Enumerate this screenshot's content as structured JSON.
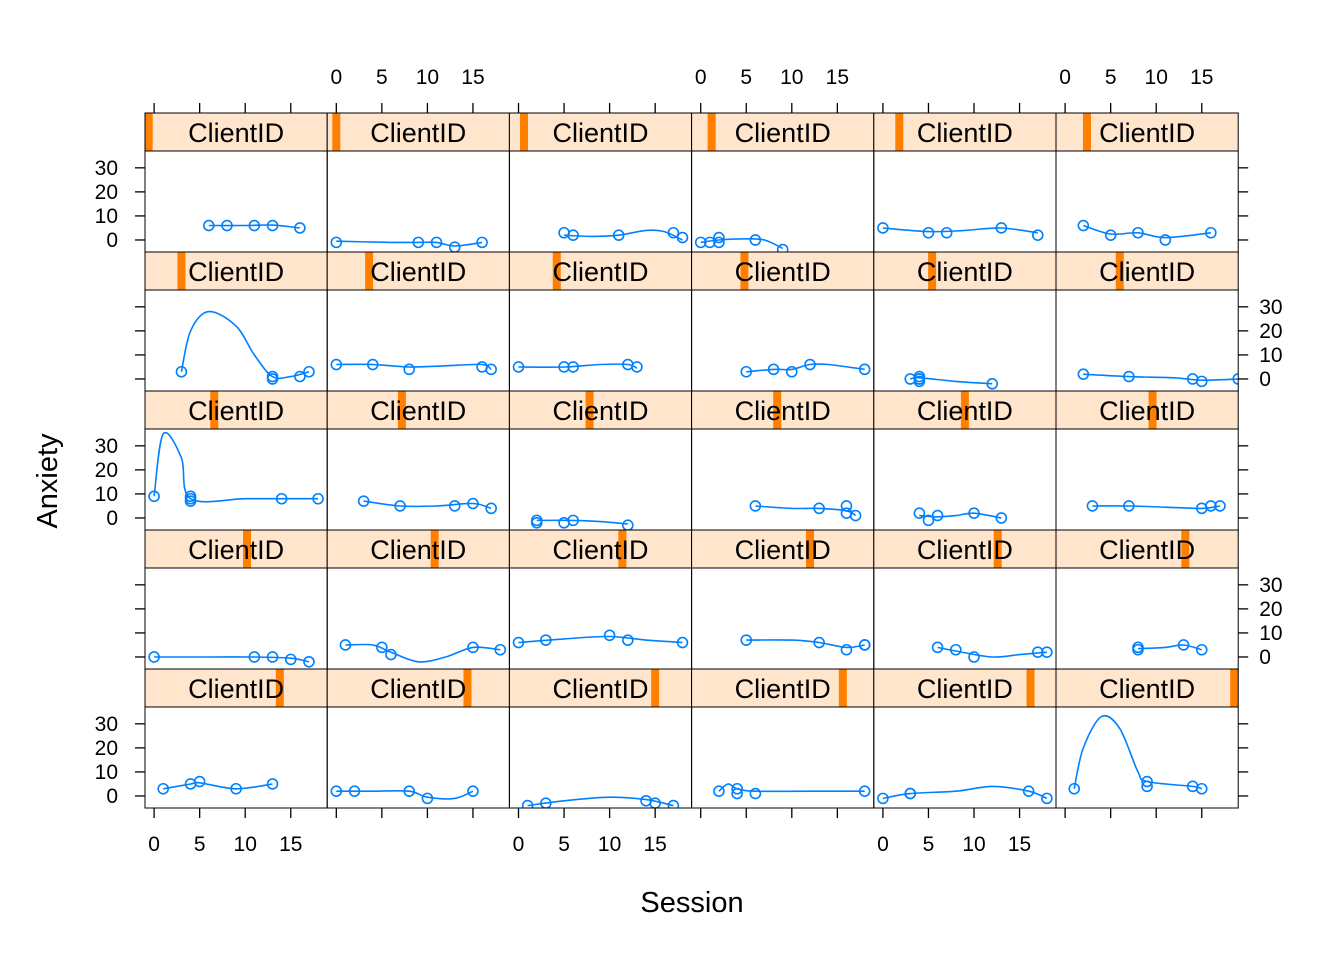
{
  "chart_data": {
    "type": "line",
    "kind": "lattice scatter with loess smoother, one panel per client",
    "xlabel": "Session",
    "ylabel": "Anxiety",
    "strip_label": "ClientID",
    "xlim": [
      -1,
      19
    ],
    "ylim": [
      -5,
      37
    ],
    "x_ticks": [
      0,
      5,
      10,
      15
    ],
    "y_ticks": [
      0,
      10,
      20,
      30
    ],
    "layout": {
      "columns": 6,
      "rows": 5
    },
    "colors": {
      "points": "#0080ff",
      "strip_bg": "#ffe5cc",
      "strip_marker": "#ff7f00",
      "frame": "#000000"
    },
    "panels": [
      {
        "row": 0,
        "col": 0,
        "strip_level": 0.02,
        "x": [
          6,
          8,
          11,
          13,
          16
        ],
        "y": [
          6,
          6,
          6,
          6,
          5
        ],
        "curve": [
          [
            6,
            6
          ],
          [
            10,
            6
          ],
          [
            13,
            6.2
          ],
          [
            16,
            5
          ]
        ]
      },
      {
        "row": 0,
        "col": 1,
        "strip_level": 0.05,
        "x": [
          0,
          9,
          11,
          13,
          16
        ],
        "y": [
          -1,
          -1,
          -1,
          -3,
          -1
        ],
        "curve": [
          [
            0,
            -0.5
          ],
          [
            6,
            -1
          ],
          [
            9,
            -1
          ],
          [
            11,
            -1
          ],
          [
            13,
            -2.5
          ],
          [
            16,
            -1
          ]
        ]
      },
      {
        "row": 0,
        "col": 2,
        "strip_level": 0.08,
        "x": [
          5,
          6,
          11,
          17,
          18
        ],
        "y": [
          3,
          2,
          2,
          3,
          1
        ],
        "curve": [
          [
            5,
            2
          ],
          [
            8,
            1.5
          ],
          [
            11,
            2
          ],
          [
            14,
            4
          ],
          [
            16,
            3.5
          ],
          [
            18,
            0
          ]
        ]
      },
      {
        "row": 0,
        "col": 3,
        "strip_level": 0.11,
        "x": [
          0,
          1,
          2,
          2,
          6,
          9
        ],
        "y": [
          -1,
          -1,
          1,
          -1,
          0,
          -4
        ],
        "curve": [
          [
            0,
            -1
          ],
          [
            2,
            0
          ],
          [
            5,
            0.5
          ],
          [
            7,
            0
          ],
          [
            9,
            -3.5
          ]
        ]
      },
      {
        "row": 0,
        "col": 4,
        "strip_level": 0.14,
        "x": [
          0,
          5,
          7,
          13,
          17
        ],
        "y": [
          5,
          3,
          3,
          5,
          2
        ],
        "curve": [
          [
            0,
            5
          ],
          [
            5,
            3.5
          ],
          [
            9,
            4
          ],
          [
            13,
            5
          ],
          [
            17,
            3
          ]
        ]
      },
      {
        "row": 0,
        "col": 5,
        "strip_level": 0.17,
        "x": [
          2,
          5,
          8,
          11,
          16
        ],
        "y": [
          6,
          2,
          3,
          0,
          3
        ],
        "curve": [
          [
            2,
            6
          ],
          [
            5,
            2.5
          ],
          [
            8,
            3
          ],
          [
            11,
            1
          ],
          [
            16,
            3
          ]
        ]
      },
      {
        "row": 1,
        "col": 0,
        "strip_level": 0.2,
        "x": [
          3,
          13,
          13,
          16,
          17
        ],
        "y": [
          3,
          0,
          1,
          1,
          3
        ],
        "curve": [
          [
            3,
            3
          ],
          [
            4,
            20
          ],
          [
            6,
            28
          ],
          [
            9,
            22
          ],
          [
            11,
            10
          ],
          [
            13,
            1
          ],
          [
            15,
            1
          ],
          [
            17,
            3
          ]
        ]
      },
      {
        "row": 1,
        "col": 1,
        "strip_level": 0.23,
        "x": [
          0,
          4,
          8,
          16,
          17
        ],
        "y": [
          6,
          6,
          4,
          5,
          4
        ],
        "curve": [
          [
            0,
            6
          ],
          [
            4,
            6
          ],
          [
            8,
            5
          ],
          [
            12,
            5.5
          ],
          [
            16,
            6
          ],
          [
            17,
            4
          ]
        ]
      },
      {
        "row": 1,
        "col": 2,
        "strip_level": 0.26,
        "x": [
          0,
          5,
          6,
          12,
          13
        ],
        "y": [
          5,
          5,
          5,
          6,
          5
        ],
        "curve": [
          [
            0,
            5
          ],
          [
            5,
            5
          ],
          [
            9,
            6
          ],
          [
            12,
            6
          ],
          [
            13,
            4.5
          ]
        ]
      },
      {
        "row": 1,
        "col": 3,
        "strip_level": 0.29,
        "x": [
          5,
          8,
          10,
          12,
          18
        ],
        "y": [
          3,
          4,
          3,
          6,
          4
        ],
        "curve": [
          [
            5,
            3
          ],
          [
            8,
            4
          ],
          [
            10,
            4
          ],
          [
            12,
            6
          ],
          [
            14,
            6
          ],
          [
            18,
            4
          ]
        ]
      },
      {
        "row": 1,
        "col": 4,
        "strip_level": 0.32,
        "x": [
          3,
          4,
          4,
          4,
          4,
          12
        ],
        "y": [
          0,
          1,
          0,
          0,
          -1,
          -2
        ],
        "curve": [
          [
            3,
            0
          ],
          [
            4,
            0.5
          ],
          [
            8,
            -1
          ],
          [
            12,
            -2
          ]
        ]
      },
      {
        "row": 1,
        "col": 5,
        "strip_level": 0.35,
        "x": [
          2,
          7,
          14,
          15,
          19
        ],
        "y": [
          2,
          1,
          0,
          -1,
          0
        ],
        "curve": [
          [
            2,
            2
          ],
          [
            7,
            1
          ],
          [
            12,
            0.5
          ],
          [
            15,
            -0.5
          ],
          [
            19,
            0
          ]
        ]
      },
      {
        "row": 2,
        "col": 0,
        "strip_level": 0.38,
        "x": [
          0,
          4,
          4,
          4,
          14,
          18
        ],
        "y": [
          9,
          8,
          9,
          7,
          8,
          8
        ],
        "curve": [
          [
            0,
            9
          ],
          [
            1,
            35
          ],
          [
            3,
            25
          ],
          [
            4,
            8
          ],
          [
            10,
            8
          ],
          [
            14,
            8
          ],
          [
            18,
            8
          ]
        ]
      },
      {
        "row": 2,
        "col": 1,
        "strip_level": 0.41,
        "x": [
          3,
          7,
          13,
          15,
          17
        ],
        "y": [
          7,
          5,
          5,
          6,
          4
        ],
        "curve": [
          [
            3,
            7
          ],
          [
            7,
            5
          ],
          [
            11,
            5
          ],
          [
            15,
            6
          ],
          [
            17,
            4
          ]
        ]
      },
      {
        "row": 2,
        "col": 2,
        "strip_level": 0.44,
        "x": [
          2,
          2,
          5,
          6,
          12
        ],
        "y": [
          -1,
          -2,
          -2,
          -1,
          -3
        ],
        "curve": [
          [
            2,
            -1
          ],
          [
            6,
            -1
          ],
          [
            9,
            -1.5
          ],
          [
            12,
            -2.5
          ]
        ]
      },
      {
        "row": 2,
        "col": 3,
        "strip_level": 0.47,
        "x": [
          6,
          13,
          16,
          16,
          17
        ],
        "y": [
          5,
          4,
          5,
          2,
          1
        ],
        "curve": [
          [
            6,
            5
          ],
          [
            10,
            4
          ],
          [
            13,
            4
          ],
          [
            16,
            3
          ],
          [
            17,
            1
          ]
        ]
      },
      {
        "row": 2,
        "col": 4,
        "strip_level": 0.5,
        "x": [
          4,
          5,
          6,
          10,
          13
        ],
        "y": [
          2,
          -1,
          1,
          2,
          0
        ],
        "curve": [
          [
            4,
            1
          ],
          [
            6,
            0.5
          ],
          [
            8,
            1
          ],
          [
            10,
            2
          ],
          [
            13,
            0
          ]
        ]
      },
      {
        "row": 2,
        "col": 5,
        "strip_level": 0.53,
        "x": [
          3,
          7,
          15,
          16,
          17
        ],
        "y": [
          5,
          5,
          4,
          5,
          5
        ],
        "curve": [
          [
            3,
            5
          ],
          [
            7,
            5
          ],
          [
            11,
            4.5
          ],
          [
            15,
            4
          ],
          [
            17,
            5
          ]
        ]
      },
      {
        "row": 3,
        "col": 0,
        "strip_level": 0.56,
        "x": [
          0,
          11,
          13,
          15,
          17
        ],
        "y": [
          0,
          0,
          0,
          -1,
          -2
        ],
        "curve": [
          [
            0,
            0
          ],
          [
            6,
            0
          ],
          [
            11,
            0
          ],
          [
            15,
            -0.5
          ],
          [
            17,
            -2
          ]
        ]
      },
      {
        "row": 3,
        "col": 1,
        "strip_level": 0.59,
        "x": [
          1,
          5,
          6,
          15,
          18
        ],
        "y": [
          5,
          4,
          1,
          4,
          3
        ],
        "curve": [
          [
            1,
            5
          ],
          [
            4,
            5
          ],
          [
            6,
            2
          ],
          [
            9,
            -2
          ],
          [
            12,
            0
          ],
          [
            15,
            4
          ],
          [
            18,
            3
          ]
        ]
      },
      {
        "row": 3,
        "col": 2,
        "strip_level": 0.62,
        "x": [
          0,
          3,
          10,
          12,
          18
        ],
        "y": [
          6,
          7,
          9,
          7,
          6
        ],
        "curve": [
          [
            0,
            6
          ],
          [
            5,
            7.5
          ],
          [
            10,
            8.5
          ],
          [
            14,
            7
          ],
          [
            18,
            6
          ]
        ]
      },
      {
        "row": 3,
        "col": 3,
        "strip_level": 0.65,
        "x": [
          5,
          13,
          16,
          18,
          18
        ],
        "y": [
          7,
          6,
          3,
          5,
          5
        ],
        "curve": [
          [
            5,
            7
          ],
          [
            10,
            7
          ],
          [
            13,
            6
          ],
          [
            16,
            4
          ],
          [
            18,
            5
          ]
        ]
      },
      {
        "row": 3,
        "col": 4,
        "strip_level": 0.68,
        "x": [
          6,
          8,
          10,
          17,
          18
        ],
        "y": [
          4,
          3,
          0,
          2,
          2
        ],
        "curve": [
          [
            6,
            4
          ],
          [
            8,
            2.5
          ],
          [
            12,
            0
          ],
          [
            15,
            1
          ],
          [
            18,
            2
          ]
        ]
      },
      {
        "row": 3,
        "col": 5,
        "strip_level": 0.71,
        "x": [
          8,
          8,
          13,
          15
        ],
        "y": [
          4,
          3,
          5,
          3
        ],
        "curve": [
          [
            8,
            3.5
          ],
          [
            11,
            4
          ],
          [
            13,
            5
          ],
          [
            15,
            3
          ]
        ]
      },
      {
        "row": 4,
        "col": 0,
        "strip_level": 0.74,
        "x": [
          1,
          4,
          5,
          9,
          13
        ],
        "y": [
          3,
          5,
          6,
          3,
          5
        ],
        "curve": [
          [
            1,
            3
          ],
          [
            4,
            5
          ],
          [
            5,
            5.5
          ],
          [
            9,
            3
          ],
          [
            13,
            5
          ]
        ]
      },
      {
        "row": 4,
        "col": 1,
        "strip_level": 0.77,
        "x": [
          0,
          2,
          8,
          10,
          15
        ],
        "y": [
          2,
          2,
          2,
          -1,
          2
        ],
        "curve": [
          [
            0,
            2
          ],
          [
            4,
            2
          ],
          [
            8,
            2
          ],
          [
            10,
            -0.5
          ],
          [
            13,
            -1
          ],
          [
            15,
            2
          ]
        ]
      },
      {
        "row": 4,
        "col": 2,
        "strip_level": 0.8,
        "x": [
          1,
          3,
          14,
          15,
          17
        ],
        "y": [
          -4,
          -3,
          -2,
          -3,
          -4
        ],
        "curve": [
          [
            1,
            -4
          ],
          [
            5,
            -2
          ],
          [
            10,
            -0.5
          ],
          [
            14,
            -1.5
          ],
          [
            17,
            -4
          ]
        ]
      },
      {
        "row": 4,
        "col": 3,
        "strip_level": 0.83,
        "x": [
          2,
          4,
          4,
          6,
          18
        ],
        "y": [
          2,
          3,
          1,
          1,
          2
        ],
        "curve": [
          [
            2,
            2
          ],
          [
            3,
            5
          ],
          [
            4,
            3
          ],
          [
            6,
            2
          ],
          [
            12,
            2
          ],
          [
            18,
            2
          ]
        ]
      },
      {
        "row": 4,
        "col": 4,
        "strip_level": 0.86,
        "x": [
          0,
          3,
          3,
          16,
          18
        ],
        "y": [
          -1,
          1,
          1,
          2,
          -1
        ],
        "curve": [
          [
            0,
            -1
          ],
          [
            3,
            1
          ],
          [
            8,
            2
          ],
          [
            12,
            4
          ],
          [
            16,
            2
          ],
          [
            18,
            -1
          ]
        ]
      },
      {
        "row": 4,
        "col": 5,
        "strip_level": 0.99,
        "x": [
          1,
          9,
          9,
          14,
          15
        ],
        "y": [
          3,
          6,
          4,
          4,
          3
        ],
        "curve": [
          [
            1,
            3
          ],
          [
            2,
            20
          ],
          [
            4,
            33
          ],
          [
            6,
            28
          ],
          [
            8,
            10
          ],
          [
            9,
            6
          ],
          [
            14,
            4
          ],
          [
            15,
            3
          ]
        ]
      }
    ]
  }
}
